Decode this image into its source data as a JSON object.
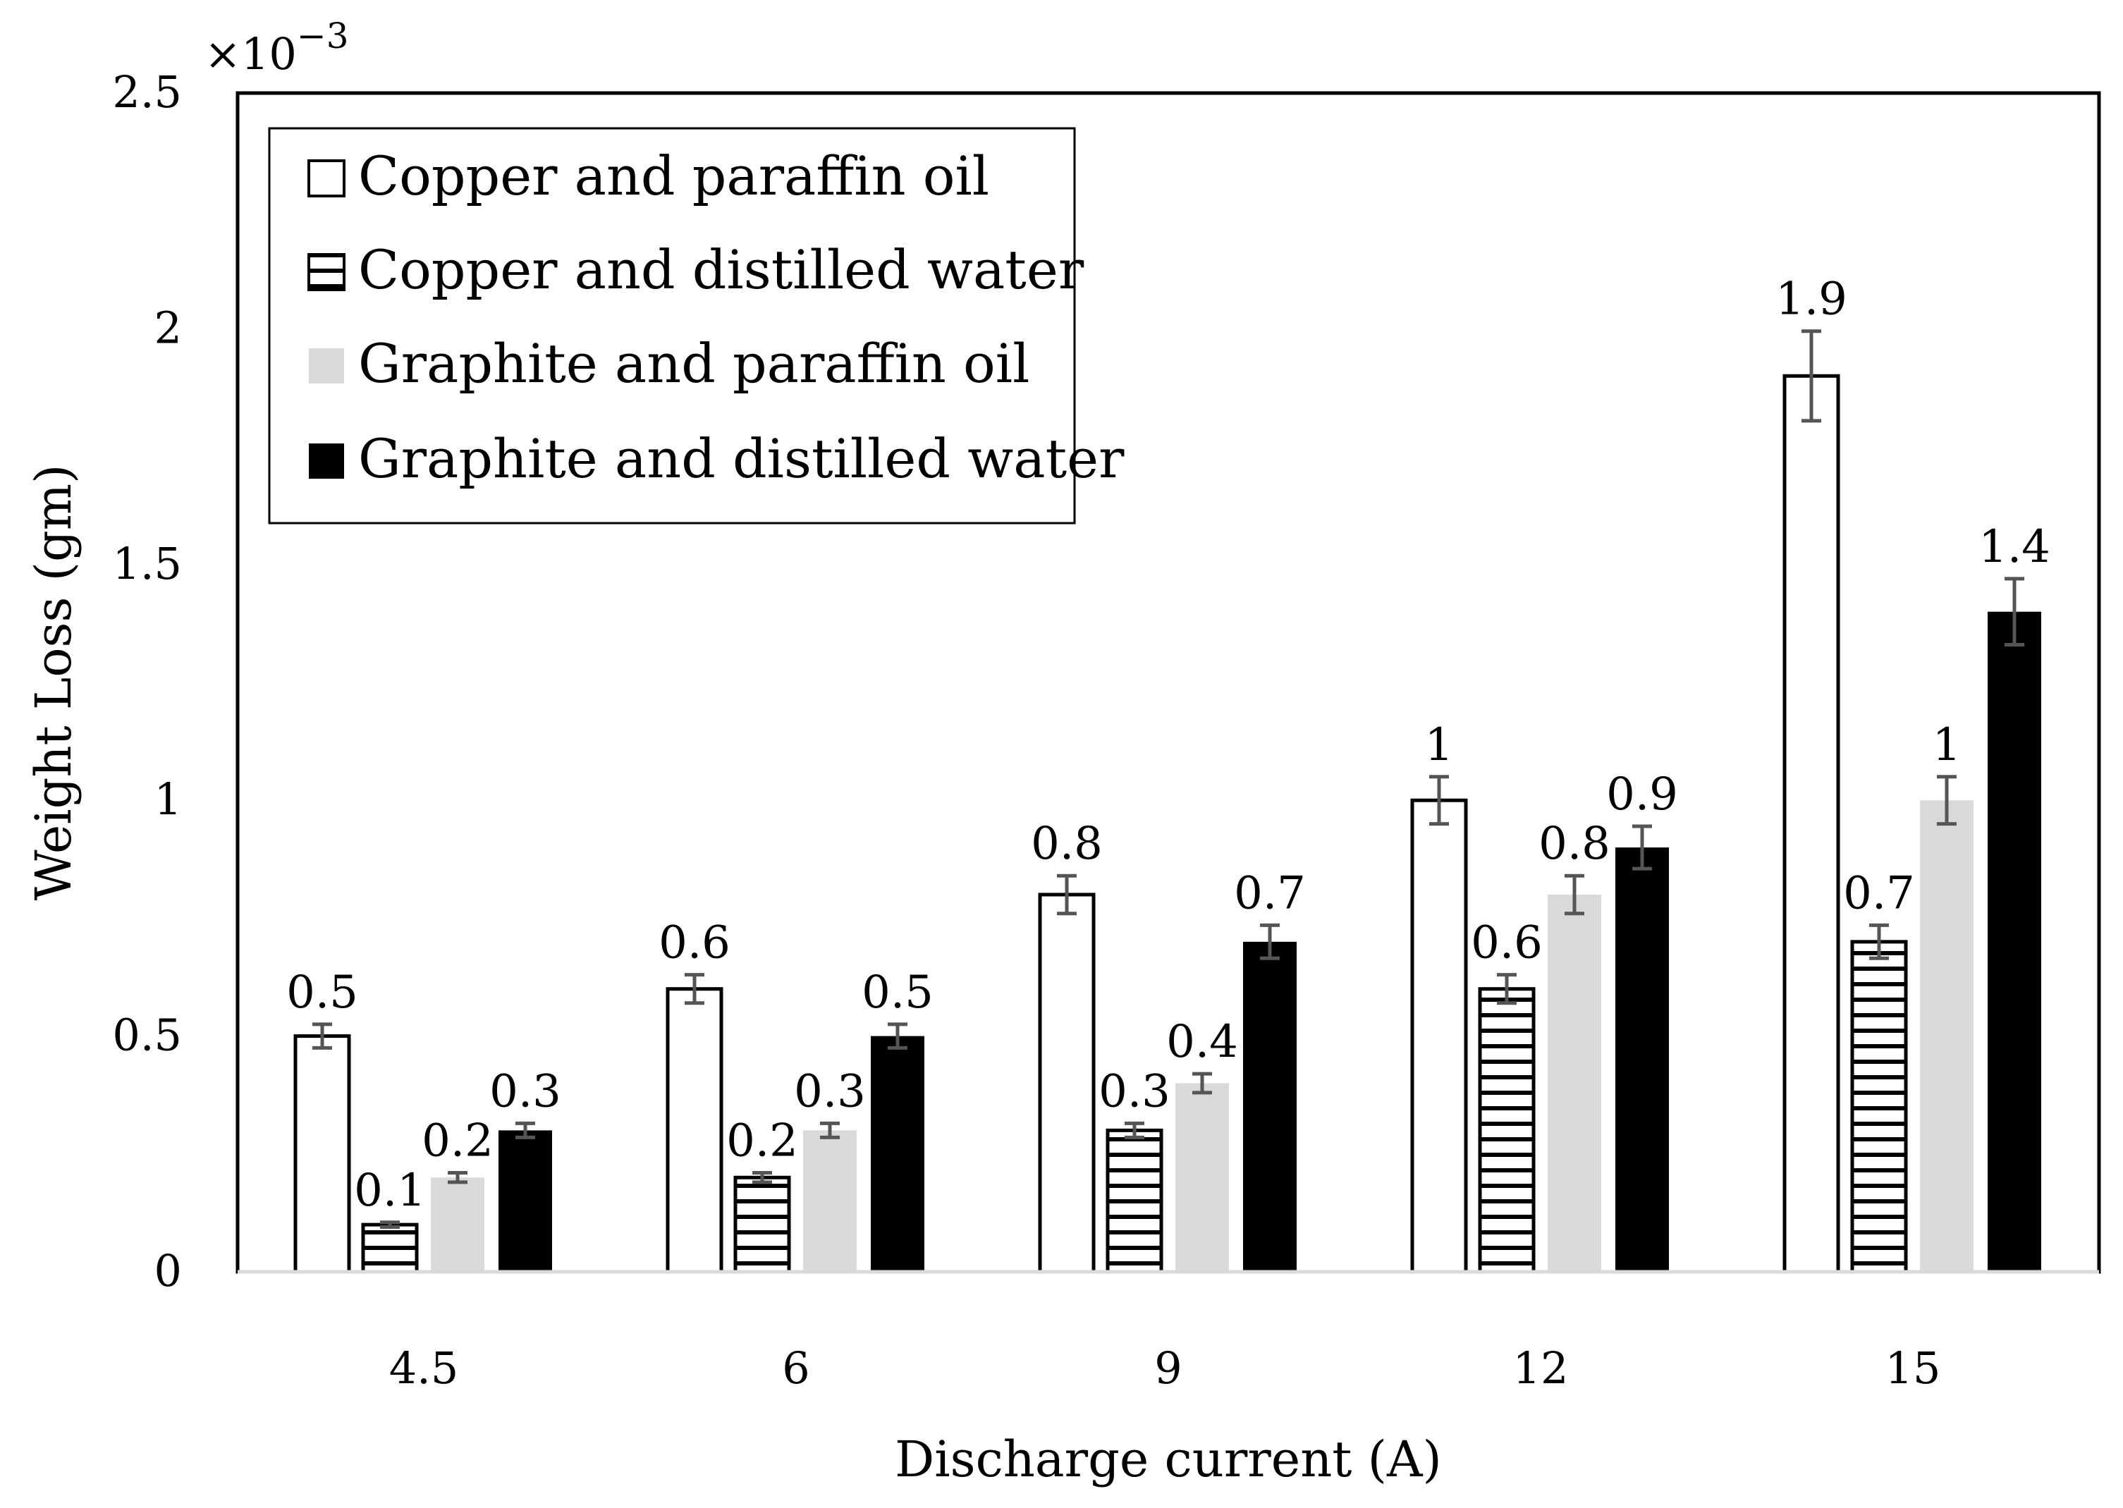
{
  "chart_data": {
    "type": "bar",
    "xlabel": "Discharge current (A)",
    "ylabel": "Weight Loss (gm)",
    "multiplier": "×10",
    "multiplier_exp": "−3",
    "categories": [
      "4.5",
      "6",
      "9",
      "12",
      "15"
    ],
    "ylim": [
      0,
      2.5
    ],
    "yticks": [
      "0",
      "0.5",
      "1",
      "1.5",
      "2",
      "2.5"
    ],
    "ytick_values": [
      0,
      0.5,
      1,
      1.5,
      2,
      2.5
    ],
    "legend_position": "top-left",
    "series": [
      {
        "name": "Copper and paraffin oil",
        "style": "white",
        "values": [
          0.5,
          0.6,
          0.8,
          1,
          1.9
        ],
        "labels": [
          "0.5",
          "0.6",
          "0.8",
          "1",
          "1.9"
        ],
        "errors": [
          0.025,
          0.03,
          0.04,
          0.05,
          0.095
        ]
      },
      {
        "name": "Copper and distilled water",
        "style": "hatch",
        "values": [
          0.1,
          0.2,
          0.3,
          0.6,
          0.7
        ],
        "labels": [
          "0.1",
          "0.2",
          "0.3",
          "0.6",
          "0.7"
        ],
        "errors": [
          0.005,
          0.01,
          0.015,
          0.03,
          0.035
        ]
      },
      {
        "name": "Graphite and paraffin oil",
        "style": "light-gray",
        "values": [
          0.2,
          0.3,
          0.4,
          0.8,
          1
        ],
        "labels": [
          "0.2",
          "0.3",
          "0.4",
          "0.8",
          "1"
        ],
        "errors": [
          0.01,
          0.015,
          0.02,
          0.04,
          0.05
        ]
      },
      {
        "name": "Graphite and distilled water",
        "style": "black",
        "values": [
          0.3,
          0.5,
          0.7,
          0.9,
          1.4
        ],
        "labels": [
          "0.3",
          "0.5",
          "0.7",
          "0.9",
          "1.4"
        ],
        "errors": [
          0.015,
          0.025,
          0.035,
          0.045,
          0.07
        ]
      }
    ],
    "colors": {
      "white": "#ffffff",
      "light_gray": "#d9d9d9",
      "black": "#000000",
      "error_bar": "#555555",
      "axis": "#000000",
      "baseline": "#d9d9d9"
    }
  }
}
